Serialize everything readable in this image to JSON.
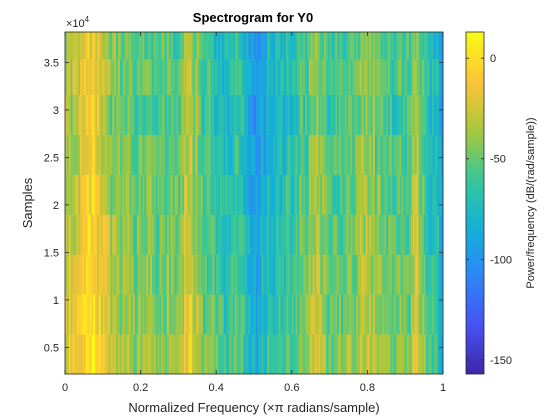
{
  "chart_data": {
    "type": "heatmap",
    "title": "Spectrogram for Y0",
    "xlabel": "Normalized Frequency (×π radians/sample)",
    "ylabel": "Samples",
    "colorbar_label": "Power/frequency (dB/(rad/sample))",
    "xlim": [
      0,
      1
    ],
    "ylim": [
      2200,
      38200
    ],
    "y_exponent": "×10",
    "y_exponent_power": "4",
    "x_ticks": [
      0,
      0.2,
      0.4,
      0.6,
      0.8,
      1
    ],
    "x_tick_labels": [
      "0",
      "0.2",
      "0.4",
      "0.6",
      "0.8",
      "1"
    ],
    "y_ticks": [
      5000,
      10000,
      15000,
      20000,
      25000,
      30000,
      35000
    ],
    "y_tick_labels": [
      "0.5",
      "1",
      "1.5",
      "2",
      "2.5",
      "3",
      "3.5"
    ],
    "clim": [
      -157,
      13
    ],
    "colorbar_ticks": [
      0,
      -50,
      -100,
      -150
    ],
    "colorbar_tick_labels": [
      "0",
      "-50",
      "-100",
      "-150"
    ],
    "colormap": "parula",
    "grid": false,
    "time_bins_y_centers": [
      4300,
      8500,
      12700,
      16900,
      21100,
      25300,
      29500,
      33700,
      37000
    ],
    "frequency_profile_db": [
      {
        "x": 0.0,
        "db": -25
      },
      {
        "x": 0.02,
        "db": -35
      },
      {
        "x": 0.05,
        "db": -15
      },
      {
        "x": 0.07,
        "db": -8
      },
      {
        "x": 0.09,
        "db": -20
      },
      {
        "x": 0.12,
        "db": -38
      },
      {
        "x": 0.15,
        "db": -45
      },
      {
        "x": 0.2,
        "db": -50
      },
      {
        "x": 0.25,
        "db": -55
      },
      {
        "x": 0.3,
        "db": -48
      },
      {
        "x": 0.33,
        "db": -22
      },
      {
        "x": 0.36,
        "db": -55
      },
      {
        "x": 0.4,
        "db": -65
      },
      {
        "x": 0.43,
        "db": -75
      },
      {
        "x": 0.46,
        "db": -55
      },
      {
        "x": 0.48,
        "db": -85
      },
      {
        "x": 0.51,
        "db": -95
      },
      {
        "x": 0.54,
        "db": -75
      },
      {
        "x": 0.58,
        "db": -70
      },
      {
        "x": 0.62,
        "db": -55
      },
      {
        "x": 0.66,
        "db": -40
      },
      {
        "x": 0.7,
        "db": -55
      },
      {
        "x": 0.75,
        "db": -50
      },
      {
        "x": 0.8,
        "db": -38
      },
      {
        "x": 0.85,
        "db": -55
      },
      {
        "x": 0.9,
        "db": -60
      },
      {
        "x": 0.93,
        "db": -35
      },
      {
        "x": 0.96,
        "db": -70
      },
      {
        "x": 1.0,
        "db": -85
      }
    ],
    "time_offsets_db": [
      12,
      8,
      5,
      2,
      0,
      -3,
      -6,
      -2,
      -4
    ]
  }
}
